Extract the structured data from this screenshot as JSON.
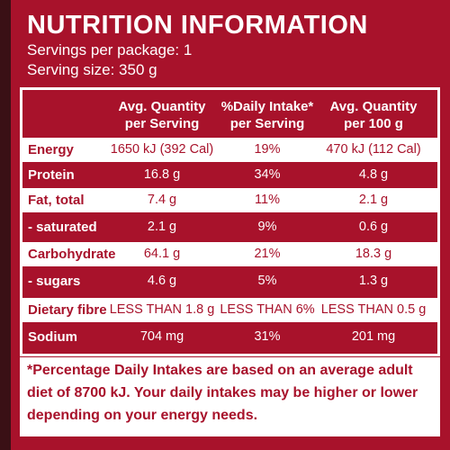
{
  "header": {
    "title": "NUTRITION INFORMATION",
    "servings": "Servings per package: 1",
    "serving_size": "Serving size: 350 g"
  },
  "table": {
    "columns": [
      [
        "Avg. Quantity",
        "per Serving"
      ],
      [
        "%Daily Intake*",
        "per Serving"
      ],
      [
        "Avg. Quantity",
        "per 100 g"
      ]
    ],
    "rows": [
      [
        "Energy",
        "1650 kJ (392 Cal)",
        "19%",
        "470 kJ (112 Cal)"
      ],
      [
        "Protein",
        "16.8 g",
        "34%",
        "4.8 g"
      ],
      [
        "Fat, total",
        "7.4 g",
        "11%",
        "2.1 g"
      ],
      [
        "- saturated",
        "2.1 g",
        "9%",
        "0.6 g"
      ],
      [
        "Carbohydrate",
        "64.1 g",
        "21%",
        "18.3 g"
      ],
      [
        "- sugars",
        "4.6 g",
        "5%",
        "1.3 g"
      ],
      [
        "Dietary fibre",
        "LESS THAN 1.8 g",
        "LESS THAN 6%",
        "LESS THAN 0.5 g"
      ],
      [
        "Sodium",
        "704 mg",
        "31%",
        "201 mg"
      ]
    ]
  },
  "footnote": [
    "*Percentage Daily Intakes are based on an average adult",
    "diet of 8700 kJ. Your daily intakes may be higher or lower",
    "depending on your energy needs."
  ]
}
